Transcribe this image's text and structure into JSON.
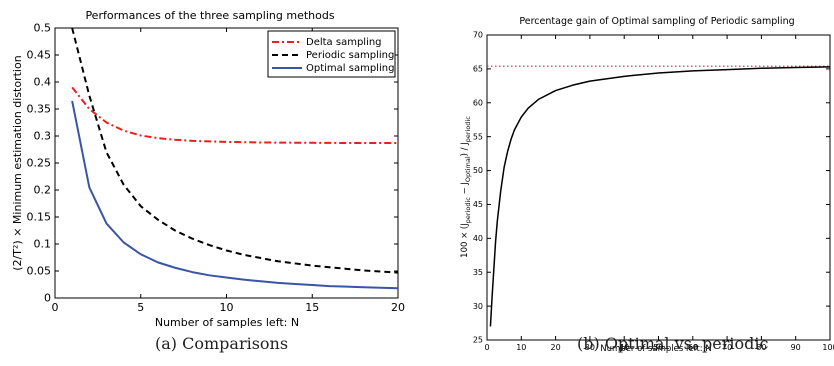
{
  "chart_data": [
    {
      "type": "line",
      "title": "Performances of the three sampling methods",
      "xlabel": "Number of samples left: N",
      "ylabel": "(2/T²) × Minimum estimation distortion",
      "xlim": [
        0,
        20
      ],
      "ylim": [
        0,
        0.5
      ],
      "xticks": [
        "0",
        "5",
        "10",
        "15",
        "20"
      ],
      "yticks": [
        "0",
        "0.05",
        "0.1",
        "0.15",
        "0.2",
        "0.25",
        "0.3",
        "0.35",
        "0.4",
        "0.45",
        "0.5"
      ],
      "legend_position": "top-right",
      "grid": false,
      "x": [
        1,
        2,
        3,
        4,
        5,
        6,
        7,
        8,
        9,
        10,
        11,
        12,
        13,
        14,
        15,
        16,
        17,
        18,
        19,
        20
      ],
      "series": [
        {
          "name": "Delta sampling",
          "color": "#e8201e",
          "style": "dash-dot",
          "values": [
            0.39,
            0.35,
            0.325,
            0.31,
            0.301,
            0.296,
            0.293,
            0.291,
            0.29,
            0.289,
            0.2885,
            0.288,
            0.2878,
            0.2876,
            0.2874,
            0.2872,
            0.2871,
            0.287,
            0.287,
            0.287
          ]
        },
        {
          "name": "Periodic sampling",
          "color": "#000000",
          "style": "dashed",
          "values": [
            0.5,
            0.375,
            0.27,
            0.21,
            0.17,
            0.145,
            0.125,
            0.11,
            0.098,
            0.088,
            0.08,
            0.074,
            0.068,
            0.064,
            0.06,
            0.057,
            0.054,
            0.051,
            0.049,
            0.047
          ]
        },
        {
          "name": "Optimal sampling",
          "color": "#3b55a5",
          "style": "solid",
          "values": [
            0.365,
            0.205,
            0.138,
            0.103,
            0.081,
            0.066,
            0.056,
            0.048,
            0.042,
            0.038,
            0.034,
            0.031,
            0.028,
            0.026,
            0.024,
            0.022,
            0.021,
            0.02,
            0.019,
            0.018
          ]
        }
      ]
    },
    {
      "type": "line",
      "title": "Percentage gain of Optimal sampling of Periodic sampling",
      "xlabel": "Number of samples left: N",
      "ylabel": "100 × (J_periodic − J_Optimal) / J_periodic",
      "ylabel_parts": {
        "pre": "100 × (J",
        "sub1": "periodic",
        "mid": " − J",
        "sub2": "Optimal",
        "post": ") / J",
        "sub3": "periodic"
      },
      "xlim": [
        0,
        100
      ],
      "ylim": [
        25,
        70
      ],
      "xticks": [
        "0",
        "10",
        "20",
        "30",
        "40",
        "50",
        "60",
        "70",
        "80",
        "90",
        "100"
      ],
      "yticks": [
        "25",
        "30",
        "35",
        "40",
        "45",
        "50",
        "55",
        "60",
        "65",
        "70"
      ],
      "grid": false,
      "reference_line": {
        "y": 65.4,
        "color": "#e8201e",
        "style": "dotted"
      },
      "series": [
        {
          "color": "#000000",
          "style": "solid",
          "x": [
            1,
            1.5,
            2,
            2.5,
            3,
            4,
            5,
            6,
            7,
            8,
            10,
            12,
            15,
            20,
            25,
            30,
            40,
            50,
            60,
            70,
            80,
            90,
            100
          ],
          "values": [
            27.0,
            31.5,
            35.5,
            39.5,
            42.5,
            47.0,
            50.5,
            52.8,
            54.6,
            56.0,
            57.9,
            59.2,
            60.5,
            61.8,
            62.6,
            63.2,
            63.9,
            64.4,
            64.7,
            64.9,
            65.1,
            65.2,
            65.3
          ]
        }
      ]
    }
  ],
  "captions": {
    "left": "(a)  Comparisons",
    "right": "(b)  Optimal vs. periodic"
  }
}
